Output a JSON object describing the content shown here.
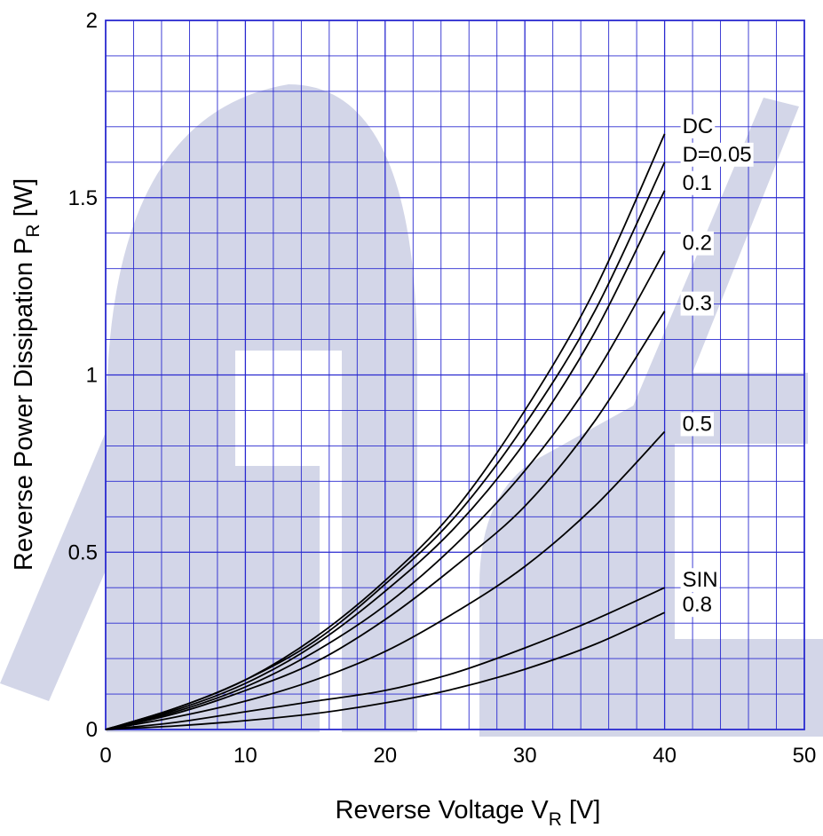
{
  "chart_data": {
    "type": "line",
    "title": "",
    "xlabel": {
      "main": "Reverse Voltage  V",
      "sub": "R",
      "unit": "  [V]"
    },
    "ylabel": {
      "main": "Reverse Power Dissipation  P",
      "sub": "R",
      "unit": "  [W]"
    },
    "xlim": [
      0,
      50
    ],
    "ylim": [
      0,
      2
    ],
    "x_ticks": [
      0,
      10,
      20,
      30,
      40,
      50
    ],
    "x_tick_labels": [
      "0",
      "10",
      "20",
      "30",
      "40",
      "50"
    ],
    "y_ticks": [
      0,
      0.5,
      1,
      1.5,
      2
    ],
    "y_tick_labels": [
      "0",
      "0.5",
      "1",
      "1.5",
      "2"
    ],
    "grid": true,
    "grid_color": "#2a2ad0",
    "line_color": "#000000",
    "watermark_color": "#d3d6e8",
    "series": [
      {
        "name": "DC",
        "x": [
          0,
          5,
          10,
          15,
          20,
          25,
          30,
          35,
          40
        ],
        "y": [
          0,
          0.06,
          0.14,
          0.26,
          0.42,
          0.62,
          0.9,
          1.24,
          1.68
        ]
      },
      {
        "name": "D=0.05",
        "x": [
          0,
          5,
          10,
          15,
          20,
          25,
          30,
          35,
          40
        ],
        "y": [
          0,
          0.06,
          0.14,
          0.25,
          0.41,
          0.6,
          0.86,
          1.18,
          1.6
        ]
      },
      {
        "name": "0.1",
        "x": [
          0,
          5,
          10,
          15,
          20,
          25,
          30,
          35,
          40
        ],
        "y": [
          0,
          0.055,
          0.13,
          0.24,
          0.39,
          0.57,
          0.81,
          1.12,
          1.52
        ]
      },
      {
        "name": "0.2",
        "x": [
          0,
          5,
          10,
          15,
          20,
          25,
          30,
          35,
          40
        ],
        "y": [
          0,
          0.05,
          0.12,
          0.22,
          0.35,
          0.52,
          0.73,
          1.0,
          1.35
        ]
      },
      {
        "name": "0.3",
        "x": [
          0,
          5,
          10,
          15,
          20,
          25,
          30,
          35,
          40
        ],
        "y": [
          0,
          0.045,
          0.11,
          0.19,
          0.31,
          0.46,
          0.63,
          0.87,
          1.18
        ]
      },
      {
        "name": "0.5",
        "x": [
          0,
          5,
          10,
          15,
          20,
          25,
          30,
          35,
          40
        ],
        "y": [
          0,
          0.035,
          0.08,
          0.14,
          0.22,
          0.33,
          0.46,
          0.63,
          0.84
        ]
      },
      {
        "name": "SIN",
        "x": [
          0,
          5,
          10,
          15,
          20,
          25,
          30,
          35,
          40
        ],
        "y": [
          0,
          0.02,
          0.05,
          0.08,
          0.11,
          0.16,
          0.23,
          0.31,
          0.4
        ]
      },
      {
        "name": "0.8",
        "x": [
          0,
          5,
          10,
          15,
          20,
          25,
          30,
          35,
          40
        ],
        "y": [
          0,
          0.01,
          0.025,
          0.045,
          0.075,
          0.115,
          0.17,
          0.24,
          0.33
        ]
      }
    ]
  }
}
